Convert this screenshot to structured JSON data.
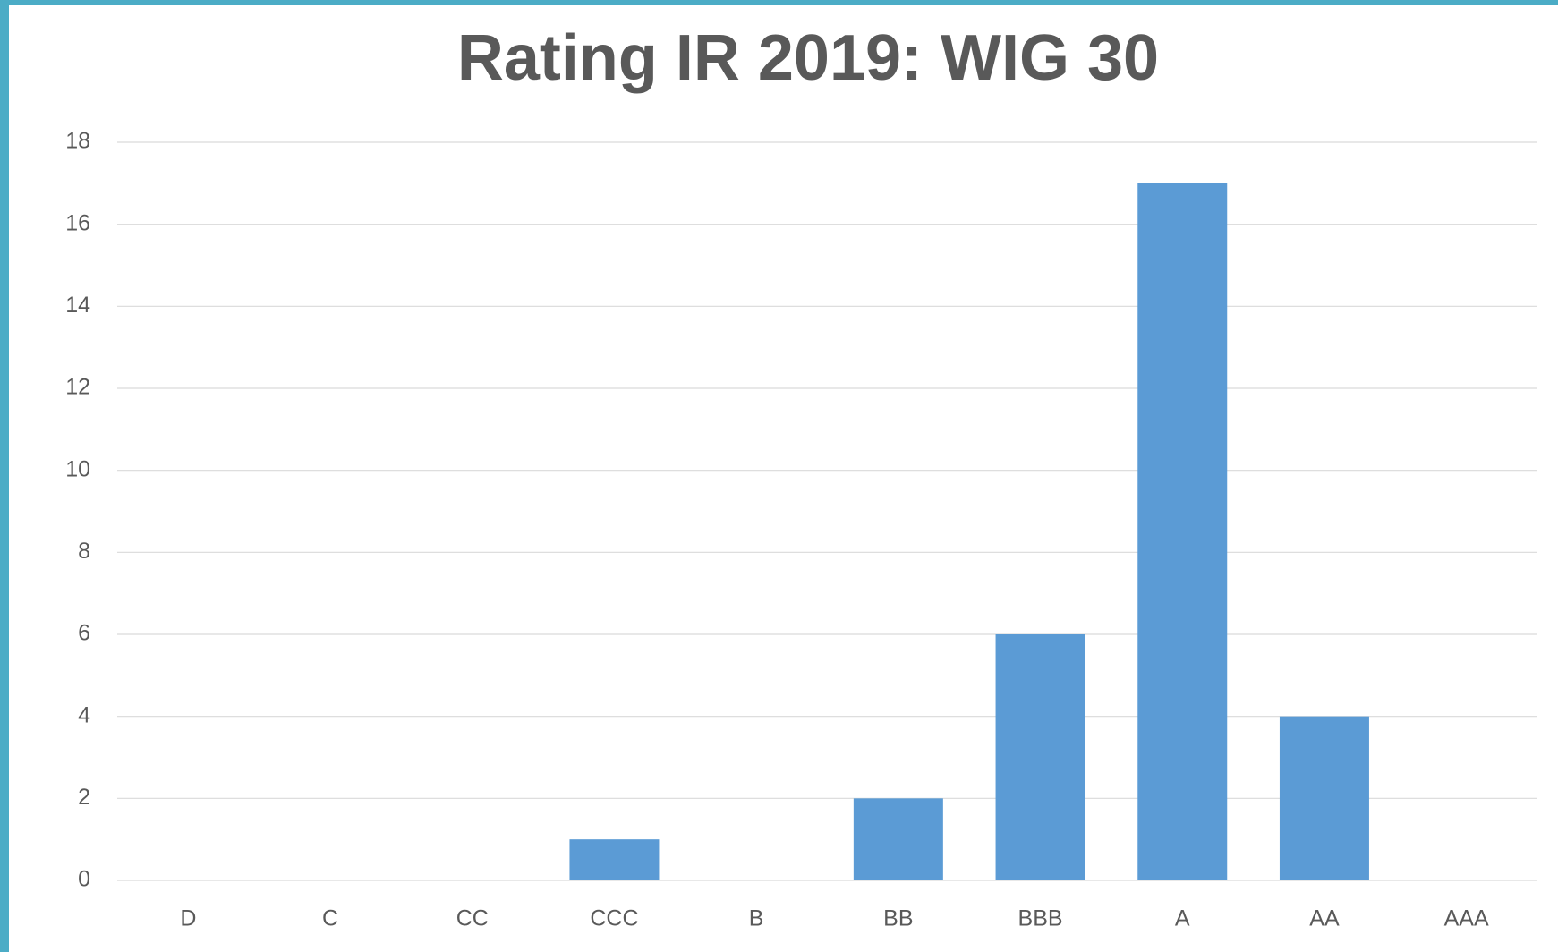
{
  "chart_data": {
    "type": "bar",
    "title": "Rating IR 2019:  WIG 30",
    "categories": [
      "D",
      "C",
      "CC",
      "CCC",
      "B",
      "BB",
      "BBB",
      "A",
      "AA",
      "AAA"
    ],
    "values": [
      0,
      0,
      0,
      1,
      0,
      2,
      6,
      17,
      4,
      0
    ],
    "color": "#5b9bd5",
    "ylim": [
      0,
      18
    ],
    "yticks": [
      0,
      2,
      4,
      6,
      8,
      10,
      12,
      14,
      16,
      18
    ],
    "grid": true
  }
}
